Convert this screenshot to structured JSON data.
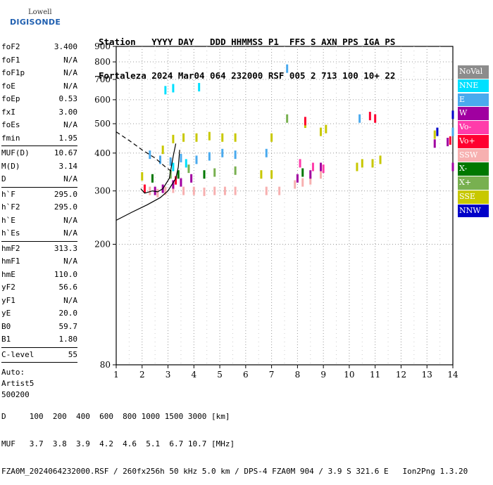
{
  "logo": {
    "line1": "Lowell",
    "line2": "DIGISONDE"
  },
  "header": {
    "labels": "Station   YYYY DAY   DDD HHMMSS P1  FFS S AXN PPS IGA PS",
    "values": "Fortaleza 2024 Mar04 064 232000 RSF 005 2 713 100 10+ 22"
  },
  "params": [
    {
      "name": "foF2",
      "value": "3.400"
    },
    {
      "name": "foF1",
      "value": "N/A"
    },
    {
      "name": "foF1p",
      "value": "N/A"
    },
    {
      "name": "foE",
      "value": "N/A"
    },
    {
      "name": "foEp",
      "value": "0.53"
    },
    {
      "name": "fxI",
      "value": "3.00"
    },
    {
      "name": "foEs",
      "value": "N/A"
    },
    {
      "name": "fmin",
      "value": "1.95"
    },
    {
      "sep": true
    },
    {
      "name": "MUF(D)",
      "value": "10.67"
    },
    {
      "name": "M(D)",
      "value": "3.14"
    },
    {
      "name": "D",
      "value": "N/A"
    },
    {
      "sep": true
    },
    {
      "name": "h`F",
      "value": "295.0"
    },
    {
      "name": "h`F2",
      "value": "295.0"
    },
    {
      "name": "h`E",
      "value": "N/A"
    },
    {
      "name": "h`Es",
      "value": "N/A"
    },
    {
      "sep": true
    },
    {
      "name": "hmF2",
      "value": "313.3"
    },
    {
      "name": "hmF1",
      "value": "N/A"
    },
    {
      "name": "hmE",
      "value": "110.0"
    },
    {
      "name": "yF2",
      "value": "56.6"
    },
    {
      "name": "yF1",
      "value": "N/A"
    },
    {
      "name": "yE",
      "value": "20.0"
    },
    {
      "name": "B0",
      "value": "59.7"
    },
    {
      "name": "B1",
      "value": "1.80"
    },
    {
      "sep": true
    },
    {
      "name": "C-level",
      "value": "55"
    },
    {
      "sep": true
    }
  ],
  "auto": {
    "line1": "Auto:",
    "line2": "Artist5",
    "line3": "500200"
  },
  "legend": [
    {
      "label": "NoVal",
      "color": "#8c8c8c"
    },
    {
      "label": "NNE",
      "color": "#00e0ff"
    },
    {
      "label": "E",
      "color": "#4aaaee"
    },
    {
      "label": "W",
      "color": "#a000a0"
    },
    {
      "label": "Vo-",
      "color": "#ff3caa"
    },
    {
      "label": "Vo+",
      "color": "#ff0030"
    },
    {
      "label": "SSW",
      "color": "#f7b0b0"
    },
    {
      "label": "X-",
      "color": "#007800"
    },
    {
      "label": "X+",
      "color": "#78b050"
    },
    {
      "label": "SSE",
      "color": "#c8c800"
    },
    {
      "label": "NNW",
      "color": "#0000c8"
    }
  ],
  "chart_data": {
    "type": "scatter",
    "title": "",
    "xlabel": "",
    "ylabel": "",
    "xlim": [
      1,
      14
    ],
    "ylim": [
      80,
      900
    ],
    "x_ticks": [
      "1",
      "2",
      "3",
      "4",
      "5",
      "6",
      "7",
      "8",
      "9",
      "10",
      "11",
      "12",
      "13",
      "14"
    ],
    "y_ticks": [
      "80",
      "200",
      "300",
      "400",
      "500",
      "600",
      "700",
      "800",
      "900"
    ],
    "y_scale": "log",
    "grid": true,
    "series": [
      {
        "name": "SSW",
        "color": "#f7b0b0",
        "points": [
          [
            2.3,
            300
          ],
          [
            2.6,
            295
          ],
          [
            2.9,
            300
          ],
          [
            3.2,
            305
          ],
          [
            3.6,
            300
          ],
          [
            4.0,
            300
          ],
          [
            4.4,
            298
          ],
          [
            4.8,
            300
          ],
          [
            5.2,
            300
          ],
          [
            5.6,
            300
          ],
          [
            6.8,
            300
          ],
          [
            7.3,
            300
          ],
          [
            7.9,
            315
          ],
          [
            8.2,
            320
          ],
          [
            8.5,
            325
          ],
          [
            8.9,
            340
          ]
        ]
      },
      {
        "name": "SSE",
        "color": "#c8c800",
        "points": [
          [
            2.0,
            335
          ],
          [
            2.8,
            410
          ],
          [
            3.2,
            445
          ],
          [
            3.6,
            450
          ],
          [
            4.1,
            450
          ],
          [
            4.6,
            455
          ],
          [
            5.1,
            450
          ],
          [
            5.6,
            450
          ],
          [
            6.6,
            340
          ],
          [
            7.0,
            340
          ],
          [
            7.0,
            450
          ],
          [
            8.3,
            500
          ],
          [
            8.9,
            470
          ],
          [
            9.1,
            480
          ],
          [
            10.3,
            360
          ],
          [
            10.5,
            370
          ],
          [
            10.9,
            370
          ],
          [
            11.2,
            380
          ],
          [
            13.3,
            460
          ]
        ]
      },
      {
        "name": "E",
        "color": "#4aaaee",
        "points": [
          [
            2.3,
            395
          ],
          [
            2.7,
            380
          ],
          [
            3.1,
            375
          ],
          [
            3.5,
            385
          ],
          [
            4.1,
            380
          ],
          [
            4.6,
            390
          ],
          [
            5.1,
            400
          ],
          [
            5.6,
            395
          ],
          [
            6.8,
            400
          ],
          [
            7.6,
            760
          ],
          [
            10.4,
            520
          ],
          [
            14.0,
            470
          ]
        ]
      },
      {
        "name": "W",
        "color": "#a000a0",
        "points": [
          [
            2.5,
            300
          ],
          [
            2.8,
            305
          ],
          [
            3.2,
            315
          ],
          [
            3.5,
            320
          ],
          [
            3.9,
            330
          ],
          [
            8.0,
            330
          ],
          [
            8.5,
            340
          ],
          [
            8.9,
            360
          ],
          [
            13.3,
            430
          ],
          [
            13.8,
            435
          ],
          [
            14.0,
            360
          ]
        ]
      },
      {
        "name": "Vo+",
        "color": "#ff0030",
        "points": [
          [
            2.1,
            305
          ],
          [
            3.3,
            325
          ],
          [
            8.3,
            510
          ],
          [
            10.8,
            530
          ],
          [
            11.0,
            520
          ],
          [
            13.9,
            440
          ]
        ]
      },
      {
        "name": "NNE",
        "color": "#00e0ff",
        "points": [
          [
            2.9,
            645
          ],
          [
            3.2,
            655
          ],
          [
            4.2,
            660
          ],
          [
            3.2,
            360
          ],
          [
            3.7,
            370
          ]
        ]
      },
      {
        "name": "X+",
        "color": "#78b050",
        "points": [
          [
            3.1,
            340
          ],
          [
            3.8,
            355
          ],
          [
            4.8,
            345
          ],
          [
            5.6,
            350
          ],
          [
            7.6,
            520
          ]
        ]
      },
      {
        "name": "X-",
        "color": "#007800",
        "points": [
          [
            2.4,
            330
          ],
          [
            3.4,
            340
          ],
          [
            4.4,
            340
          ],
          [
            8.2,
            345
          ]
        ]
      },
      {
        "name": "Vo-",
        "color": "#ff3caa",
        "points": [
          [
            8.1,
            370
          ],
          [
            8.6,
            360
          ],
          [
            9.0,
            355
          ]
        ]
      },
      {
        "name": "NNW",
        "color": "#0000c8",
        "points": [
          [
            14.0,
            535
          ],
          [
            13.4,
            470
          ]
        ]
      }
    ]
  },
  "footer": {
    "d_row": "D     100  200  400  600  800 1000 1500 3000 [km]",
    "muf_row": "MUF   3.7  3.8  3.9  4.2  4.6  5.1  6.7 10.7 [MHz]",
    "file_row": "FZA0M_2024064232000.RSF / 260fx256h 50 kHz 5.0 km / DPS-4 FZA0M 904 / 3.9 S 321.6 E   Ion2Png 1.3.20"
  }
}
